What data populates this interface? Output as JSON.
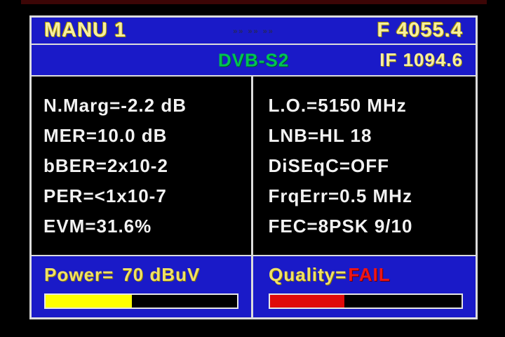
{
  "colors": {
    "panel_blue": "#1a1ac8",
    "panel_border": "#dcdcdc",
    "body_black": "#000000",
    "text_white": "#f2f2f2",
    "text_yellow": "#f0e165",
    "standard_green": "#00c353",
    "fail_red": "#ef1515",
    "bar_yellow": "#ffff00",
    "bar_red": "#df0a0a"
  },
  "header": {
    "channel_name": "MANU 1",
    "center_marks": "»» »» »»",
    "frequency": "F 4055.4",
    "standard": "DVB-S2",
    "if_frequency": "IF 1094.6"
  },
  "signal": {
    "left": [
      "N.Marg=-2.2 dB",
      "MER=10.0 dB",
      "bBER=2x10-2",
      "PER=<1x10-7",
      "EVM=31.6%"
    ],
    "right": [
      "L.O.=5150 MHz",
      "LNB=HL 18",
      "DiSEqC=OFF",
      "FrqErr=0.5 MHz",
      "FEC=8PSK 9/10"
    ]
  },
  "power": {
    "label": "Power=",
    "value": "70 dBuV",
    "bar_percent": 45
  },
  "quality": {
    "label": "Quality=",
    "value": "FAIL",
    "bar_percent": 39
  }
}
